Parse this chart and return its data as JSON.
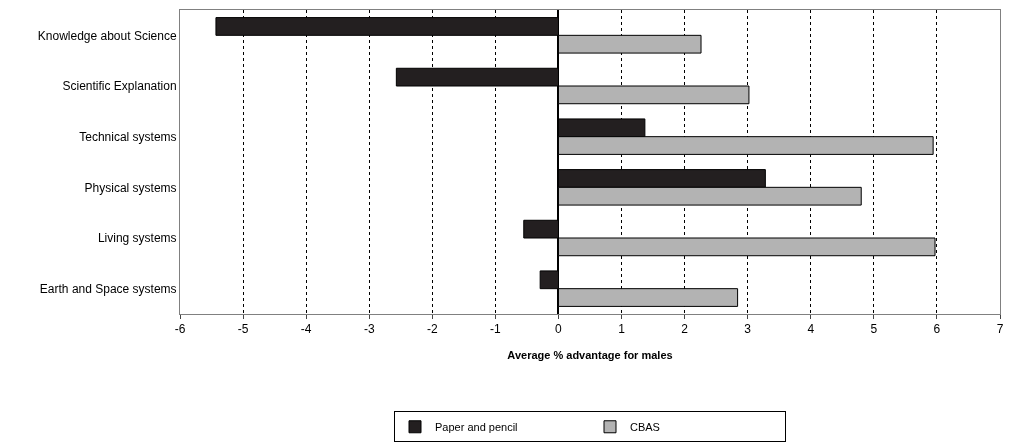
{
  "chart_data": {
    "type": "bar",
    "orientation": "horizontal",
    "xlabel": "Average % advantage for males",
    "categories": [
      "Knowledge about Science",
      "Scientific Explanation",
      "Technical systems",
      "Physical systems",
      "Living systems",
      "Earth and Space systems"
    ],
    "series": [
      {
        "name": "Paper and pencil",
        "color": "#231f20",
        "values": [
          -5.43,
          -2.57,
          1.37,
          3.28,
          -0.55,
          -0.29
        ]
      },
      {
        "name": "CBAS",
        "color": "#b3b3b3",
        "values": [
          2.26,
          3.02,
          5.94,
          4.8,
          5.97,
          2.84
        ]
      }
    ],
    "xlim": [
      -6,
      7
    ],
    "xticks": [
      -6,
      -5,
      -4,
      -3,
      -2,
      -1,
      0,
      1,
      2,
      3,
      4,
      5,
      6,
      7
    ],
    "grid": "x",
    "legend": "bottom"
  }
}
